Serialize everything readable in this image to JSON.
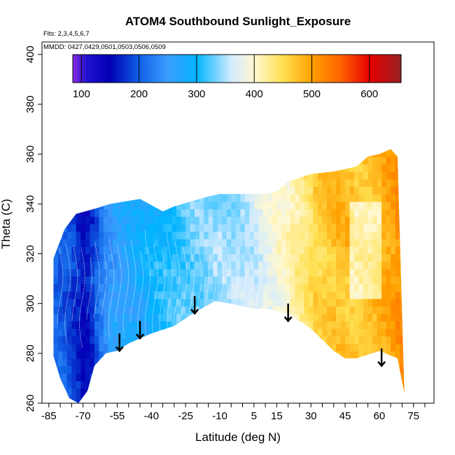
{
  "chart_data": {
    "type": "heatmap",
    "title": "ATOM4 Southbound Sunlight_Exposure",
    "annotations": [
      "Flts: 2,3,4,5,6,7",
      "MMDD: 0427,0429,0501,0503,0506,0509"
    ],
    "xlabel": "Latitude (deg N)",
    "ylabel": "Theta (C)",
    "xlim": [
      -88,
      84
    ],
    "ylim": [
      260,
      405
    ],
    "x_ticks": [
      -85,
      -80,
      -75,
      -70,
      -65,
      -60,
      -55,
      -50,
      -45,
      -40,
      -35,
      -30,
      -25,
      -20,
      -15,
      -10,
      -5,
      0,
      5,
      10,
      15,
      20,
      25,
      30,
      35,
      40,
      45,
      50,
      55,
      60,
      65,
      70,
      75,
      80
    ],
    "x_tick_labels": [
      {
        "value": -85,
        "label": "-85"
      },
      {
        "value": -70,
        "label": "-70"
      },
      {
        "value": -55,
        "label": "-55"
      },
      {
        "value": -40,
        "label": "-40"
      },
      {
        "value": -25,
        "label": "-25"
      },
      {
        "value": -10,
        "label": "-10"
      },
      {
        "value": 5,
        "label": "5"
      },
      {
        "value": 15,
        "label": "15"
      },
      {
        "value": 30,
        "label": "30"
      },
      {
        "value": 45,
        "label": "45"
      },
      {
        "value": 60,
        "label": "60"
      },
      {
        "value": 75,
        "label": "75"
      }
    ],
    "y_ticks": [
      260,
      280,
      300,
      320,
      340,
      360,
      380,
      400
    ],
    "colorbar": {
      "range": [
        85,
        655
      ],
      "ticks": [
        100,
        200,
        300,
        400,
        500,
        600
      ],
      "stops": [
        {
          "v": 85,
          "c": "#8a2be2"
        },
        {
          "v": 110,
          "c": "#2010d0"
        },
        {
          "v": 150,
          "c": "#0000b4"
        },
        {
          "v": 200,
          "c": "#1060e6"
        },
        {
          "v": 250,
          "c": "#3c9cff"
        },
        {
          "v": 300,
          "c": "#00b4ff"
        },
        {
          "v": 360,
          "c": "#d2ebff"
        },
        {
          "v": 400,
          "c": "#fff8d2"
        },
        {
          "v": 450,
          "c": "#ffe050"
        },
        {
          "v": 500,
          "c": "#ffa000"
        },
        {
          "v": 550,
          "c": "#ff6400"
        },
        {
          "v": 600,
          "c": "#e60000"
        },
        {
          "v": 655,
          "c": "#962020"
        }
      ]
    },
    "field_profile": {
      "lat": [
        -83,
        -76,
        -70,
        -60,
        -50,
        -40,
        -30,
        -20,
        -10,
        0,
        10,
        20,
        30,
        40,
        50,
        58,
        65,
        71
      ],
      "value": [
        210,
        185,
        150,
        250,
        272,
        295,
        318,
        334,
        343,
        352,
        380,
        410,
        450,
        470,
        468,
        480,
        500,
        520
      ]
    },
    "data_lat_range": [
      -83,
      71
    ],
    "top_boundary": [
      {
        "x": -83,
        "y": 318
      },
      {
        "x": -78,
        "y": 330
      },
      {
        "x": -73,
        "y": 336
      },
      {
        "x": -65,
        "y": 338
      },
      {
        "x": -58,
        "y": 340
      },
      {
        "x": -45,
        "y": 342
      },
      {
        "x": -35,
        "y": 337
      },
      {
        "x": -30,
        "y": 339
      },
      {
        "x": -15,
        "y": 343
      },
      {
        "x": -10,
        "y": 344
      },
      {
        "x": 0,
        "y": 344
      },
      {
        "x": 10,
        "y": 344
      },
      {
        "x": 15,
        "y": 345
      },
      {
        "x": 20,
        "y": 349
      },
      {
        "x": 30,
        "y": 352
      },
      {
        "x": 40,
        "y": 353
      },
      {
        "x": 50,
        "y": 355
      },
      {
        "x": 55,
        "y": 359
      },
      {
        "x": 60,
        "y": 360
      },
      {
        "x": 65,
        "y": 362
      },
      {
        "x": 68,
        "y": 359
      },
      {
        "x": 71,
        "y": 264
      }
    ],
    "bottom_boundary": [
      {
        "x": 71,
        "y": 264
      },
      {
        "x": 68,
        "y": 278
      },
      {
        "x": 60,
        "y": 281
      },
      {
        "x": 50,
        "y": 278
      },
      {
        "x": 45,
        "y": 278
      },
      {
        "x": 40,
        "y": 281
      },
      {
        "x": 30,
        "y": 290
      },
      {
        "x": 20,
        "y": 296
      },
      {
        "x": 10,
        "y": 298
      },
      {
        "x": 5,
        "y": 298
      },
      {
        "x": -5,
        "y": 300
      },
      {
        "x": -12,
        "y": 301
      },
      {
        "x": -20,
        "y": 297
      },
      {
        "x": -30,
        "y": 291
      },
      {
        "x": -40,
        "y": 288
      },
      {
        "x": -45,
        "y": 286
      },
      {
        "x": -50,
        "y": 284
      },
      {
        "x": -55,
        "y": 281
      },
      {
        "x": -60,
        "y": 280
      },
      {
        "x": -65,
        "y": 275
      },
      {
        "x": -68,
        "y": 265
      },
      {
        "x": -72,
        "y": 260
      },
      {
        "x": -76,
        "y": 262
      },
      {
        "x": -80,
        "y": 270
      },
      {
        "x": -83,
        "y": 279
      }
    ],
    "arrows": [
      {
        "lat": -54,
        "from": 288,
        "to": 281
      },
      {
        "lat": -45,
        "from": 293,
        "to": 286
      },
      {
        "lat": -21,
        "from": 303,
        "to": 296
      },
      {
        "lat": 20,
        "from": 300,
        "to": 293
      },
      {
        "lat": 61,
        "from": 282,
        "to": 275
      }
    ]
  }
}
